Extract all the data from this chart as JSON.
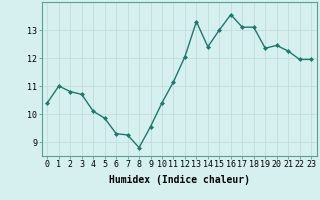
{
  "xlabel": "Humidex (Indice chaleur)",
  "ylabel": "",
  "x": [
    0,
    1,
    2,
    3,
    4,
    5,
    6,
    7,
    8,
    9,
    10,
    11,
    12,
    13,
    14,
    15,
    16,
    17,
    18,
    19,
    20,
    21,
    22,
    23
  ],
  "y": [
    10.4,
    11.0,
    10.8,
    10.7,
    10.1,
    9.85,
    9.3,
    9.25,
    8.8,
    9.55,
    10.4,
    11.15,
    12.05,
    13.3,
    12.4,
    13.0,
    13.55,
    13.1,
    13.1,
    12.35,
    12.45,
    12.25,
    11.95,
    11.95
  ],
  "line_color": "#1a7a6e",
  "marker": "D",
  "marker_size": 2.0,
  "bg_color": "#d6f0ef",
  "grid_color": "#c0dedd",
  "ylim": [
    8.5,
    14.0
  ],
  "yticks": [
    9,
    10,
    11,
    12,
    13
  ],
  "xticks": [
    0,
    1,
    2,
    3,
    4,
    5,
    6,
    7,
    8,
    9,
    10,
    11,
    12,
    13,
    14,
    15,
    16,
    17,
    18,
    19,
    20,
    21,
    22,
    23
  ],
  "xlabel_fontsize": 7.0,
  "tick_fontsize": 6.0,
  "line_width": 1.0,
  "spine_color": "#5a9e95"
}
